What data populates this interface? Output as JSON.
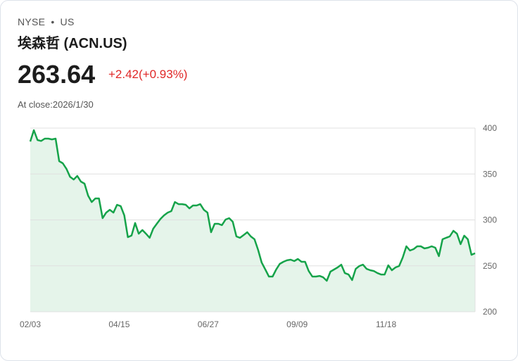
{
  "header": {
    "exchange": "NYSE",
    "separator": "•",
    "market": "US",
    "title": "埃森哲 (ACN.US)",
    "price": "263.64",
    "change": "+2.42(+0.93%)",
    "close_label": "At close:",
    "close_date": "2026/1/30"
  },
  "colors": {
    "line": "#16a34a",
    "fill": "#e5f4ea",
    "change": "#e02727"
  },
  "chart_data": {
    "type": "area",
    "title": "",
    "xlabel": "",
    "ylabel": "",
    "ylim": [
      200,
      400
    ],
    "yticks": [
      "400",
      "350",
      "300",
      "250",
      "200"
    ],
    "ytick_values": [
      400,
      350,
      300,
      250,
      200
    ],
    "xtick_labels": [
      "02/03",
      "04/15",
      "06/27",
      "09/09",
      "11/18"
    ],
    "grid": true,
    "values": [
      385.4,
      397.7,
      387,
      386,
      388.5,
      388.5,
      387.7,
      388.5,
      364,
      361.7,
      355.6,
      347,
      344,
      347.9,
      341.8,
      339.5,
      326.4,
      319.5,
      323.4,
      323.4,
      301.9,
      308,
      311,
      308,
      316.5,
      315,
      305,
      281.2,
      283,
      296.6,
      285,
      289,
      285,
      280.5,
      290.4,
      295.8,
      301.1,
      305,
      308,
      309.6,
      319.5,
      317.2,
      317.2,
      316.5,
      312.6,
      315.7,
      315.7,
      317.2,
      311,
      308,
      286.6,
      295.8,
      295.8,
      294.3,
      300.4,
      301.9,
      298,
      282,
      280.5,
      283.5,
      286.6,
      282,
      278.9,
      267.4,
      253.6,
      246,
      238.3,
      238.3,
      246,
      252.1,
      254.4,
      256,
      256.7,
      255.2,
      257.5,
      254.4,
      254.4,
      244.4,
      238.3,
      238.3,
      239,
      237.5,
      233.7,
      243.7,
      246,
      248.3,
      251.3,
      242.1,
      240.5,
      234.5,
      246.7,
      249.8,
      251.3,
      246.7,
      245.2,
      244.4,
      242.1,
      240.5,
      240.5,
      250.6,
      245.2,
      248.3,
      249.8,
      259,
      271.3,
      266.7,
      268.2,
      271.3,
      271.3,
      269,
      269.7,
      271.3,
      269.7,
      260.5,
      278.9,
      280.5,
      282,
      288.1,
      285,
      273.6,
      282.8,
      278.9,
      262,
      263.64
    ]
  }
}
